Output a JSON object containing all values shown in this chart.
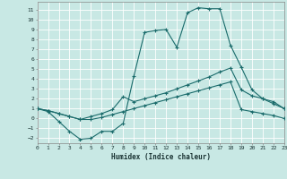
{
  "xlabel": "Humidex (Indice chaleur)",
  "xlim": [
    0,
    23
  ],
  "ylim": [
    -2.5,
    11.8
  ],
  "xticks": [
    0,
    1,
    2,
    3,
    4,
    5,
    6,
    7,
    8,
    9,
    10,
    11,
    12,
    13,
    14,
    15,
    16,
    17,
    18,
    19,
    20,
    21,
    22,
    23
  ],
  "yticks": [
    -2,
    -1,
    0,
    1,
    2,
    3,
    4,
    5,
    6,
    7,
    8,
    9,
    10,
    11
  ],
  "bg_color": "#c8e8e4",
  "grid_color": "#ffffff",
  "line_color": "#1a6b6b",
  "line1_x": [
    0,
    1,
    2,
    3,
    4,
    5,
    6,
    7,
    8,
    9,
    10,
    11,
    12,
    13,
    14,
    15,
    16,
    17,
    18,
    19,
    20,
    21,
    22,
    23
  ],
  "line1_y": [
    1.0,
    0.7,
    -0.3,
    -1.3,
    -2.1,
    -2.0,
    -1.3,
    -1.3,
    -0.5,
    4.3,
    8.7,
    8.9,
    9.0,
    7.2,
    10.7,
    11.2,
    11.1,
    11.1,
    7.4,
    5.2,
    2.9,
    2.0,
    1.5,
    1.0
  ],
  "line2_x": [
    0,
    1,
    2,
    3,
    4,
    5,
    6,
    7,
    8,
    9,
    10,
    11,
    12,
    13,
    14,
    15,
    16,
    17,
    18,
    19,
    20,
    21,
    22,
    23
  ],
  "line2_y": [
    1.0,
    0.8,
    0.5,
    0.2,
    -0.1,
    0.2,
    0.5,
    0.9,
    2.2,
    1.7,
    2.0,
    2.3,
    2.6,
    3.0,
    3.4,
    3.8,
    4.2,
    4.7,
    5.1,
    2.9,
    2.3,
    2.0,
    1.7,
    1.0
  ],
  "line3_x": [
    0,
    1,
    2,
    3,
    4,
    5,
    6,
    7,
    8,
    9,
    10,
    11,
    12,
    13,
    14,
    15,
    16,
    17,
    18,
    19,
    20,
    21,
    22,
    23
  ],
  "line3_y": [
    1.0,
    0.8,
    0.5,
    0.2,
    -0.1,
    -0.1,
    0.1,
    0.4,
    0.7,
    1.0,
    1.3,
    1.6,
    1.9,
    2.2,
    2.5,
    2.8,
    3.1,
    3.4,
    3.7,
    0.9,
    0.7,
    0.5,
    0.3,
    0.0
  ]
}
